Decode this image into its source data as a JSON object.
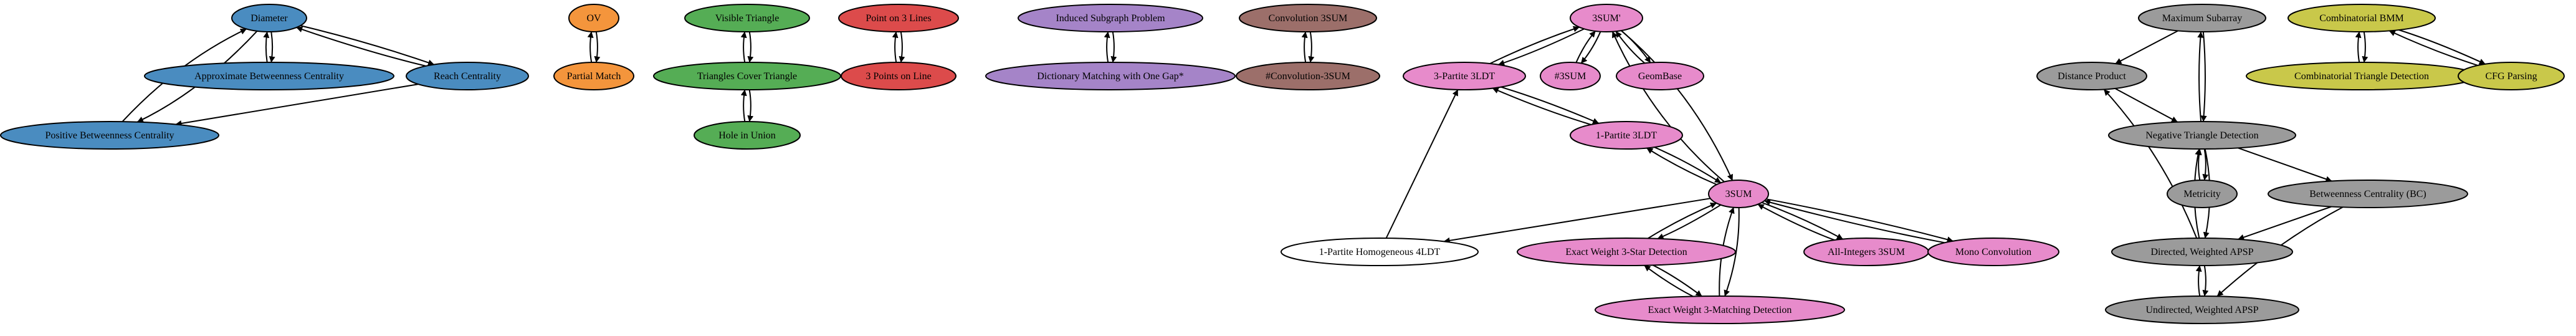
{
  "colors": {
    "blue": "#4a8cc0",
    "orange": "#f4953c",
    "green": "#55ad55",
    "red": "#dc4b4b",
    "purple": "#a584c8",
    "brown": "#9c6f6a",
    "pink": "#e78bcb",
    "gray": "#9b9b9b",
    "olive": "#c9c84a",
    "white": "#ffffff"
  },
  "nodes": [
    {
      "id": "diameter",
      "label": "Diameter",
      "color": "blue"
    },
    {
      "id": "abc",
      "label": "Approximate Betweenness Centrality",
      "color": "blue"
    },
    {
      "id": "reach",
      "label": "Reach Centrality",
      "color": "blue"
    },
    {
      "id": "pbc",
      "label": "Positive Betweenness Centrality",
      "color": "blue"
    },
    {
      "id": "ov",
      "label": "OV",
      "color": "orange"
    },
    {
      "id": "partial",
      "label": "Partial Match",
      "color": "orange"
    },
    {
      "id": "vistri",
      "label": "Visible Triangle",
      "color": "green"
    },
    {
      "id": "tct",
      "label": "Triangles Cover Triangle",
      "color": "green"
    },
    {
      "id": "hole",
      "label": "Hole in Union",
      "color": "green"
    },
    {
      "id": "p3l",
      "label": "Point on 3 Lines",
      "color": "red"
    },
    {
      "id": "3pl",
      "label": "3 Points on Line",
      "color": "red"
    },
    {
      "id": "isp",
      "label": "Induced Subgraph Problem",
      "color": "purple"
    },
    {
      "id": "dm",
      "label": "Dictionary Matching with One Gap*",
      "color": "purple"
    },
    {
      "id": "conv3sum",
      "label": "Convolution 3SUM",
      "color": "brown"
    },
    {
      "id": "sconv",
      "label": "#Convolution-3SUM",
      "color": "brown"
    },
    {
      "id": "3sump",
      "label": "3SUM'",
      "color": "pink"
    },
    {
      "id": "3p3ldt",
      "label": "3-Partite 3LDT",
      "color": "pink"
    },
    {
      "id": "s3sum",
      "label": "#3SUM",
      "color": "pink"
    },
    {
      "id": "geom",
      "label": "GeomBase",
      "color": "pink"
    },
    {
      "id": "1p3ldt",
      "label": "1-Partite 3LDT",
      "color": "pink"
    },
    {
      "id": "3sum",
      "label": "3SUM",
      "color": "pink"
    },
    {
      "id": "1p4ldt",
      "label": "1-Partite Homogeneous 4LDT",
      "color": "white"
    },
    {
      "id": "ew3s",
      "label": "Exact Weight 3-Star Detection",
      "color": "pink"
    },
    {
      "id": "ew3m",
      "label": "Exact Weight 3-Matching Detection",
      "color": "pink"
    },
    {
      "id": "ai3sum",
      "label": "All-Integers 3SUM",
      "color": "pink"
    },
    {
      "id": "mono",
      "label": "Mono Convolution",
      "color": "pink"
    },
    {
      "id": "maxsub",
      "label": "Maximum Subarray",
      "color": "gray"
    },
    {
      "id": "dp",
      "label": "Distance Product",
      "color": "gray"
    },
    {
      "id": "ntd",
      "label": "Negative Triangle Detection",
      "color": "gray"
    },
    {
      "id": "metric",
      "label": "Metricity",
      "color": "gray"
    },
    {
      "id": "bc",
      "label": "Betweenness Centrality (BC)",
      "color": "gray"
    },
    {
      "id": "dwapsp",
      "label": "Directed, Weighted APSP",
      "color": "gray"
    },
    {
      "id": "uwapsp",
      "label": "Undirected, Weighted APSP",
      "color": "gray"
    },
    {
      "id": "cbmm",
      "label": "Combinatorial BMM",
      "color": "olive"
    },
    {
      "id": "ctd",
      "label": "Combinatorial Triangle Detection",
      "color": "olive"
    },
    {
      "id": "cfg",
      "label": "CFG Parsing",
      "color": "olive"
    }
  ]
}
